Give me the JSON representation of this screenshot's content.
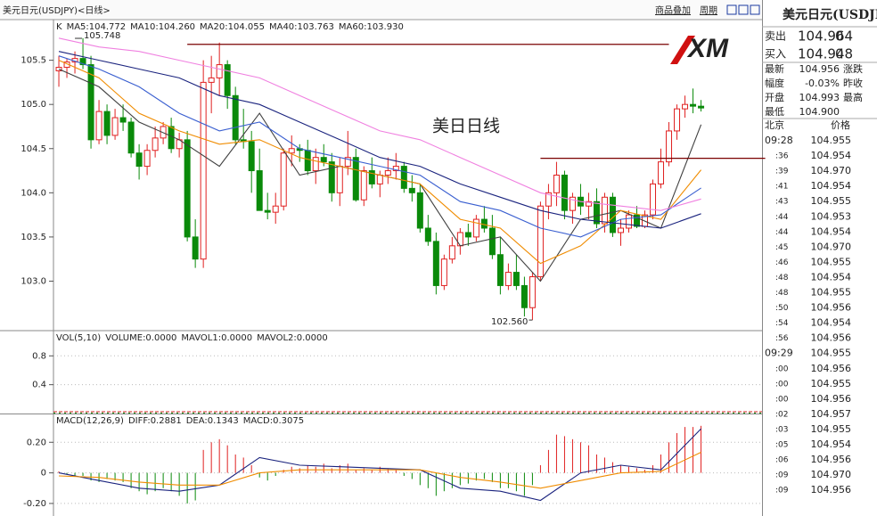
{
  "header": {
    "symbol": "美元日元(USDJPY)<日线>",
    "links": [
      "商品叠加",
      "周期"
    ],
    "logo": "XM",
    "title": "美日日线"
  },
  "chart_data": [
    {
      "type": "candlestick",
      "label": "K",
      "xlim": [
        -0.67,
        87.6
      ],
      "ylim": [
        102.44,
        105.96
      ],
      "yticks": [
        105.5,
        {
          "value": 105,
          "label": "105.0"
        },
        104.5,
        {
          "value": 104,
          "label": "104.0"
        },
        103.5,
        {
          "value": 103,
          "label": "103.0"
        }
      ],
      "grid": false,
      "up_color": "#e02020",
      "down_color": "#0a8a0a",
      "ohlc": [
        [
          105.38,
          105.55,
          105.2,
          105.42
        ],
        [
          105.42,
          105.52,
          105.3,
          105.48
        ],
        [
          105.48,
          105.6,
          105.35,
          105.52
        ],
        [
          105.52,
          105.75,
          105.4,
          105.45
        ],
        [
          105.45,
          105.55,
          104.5,
          104.6
        ],
        [
          104.6,
          105.05,
          104.55,
          104.92
        ],
        [
          104.92,
          105,
          104.55,
          104.65
        ],
        [
          104.65,
          104.95,
          104.6,
          104.85
        ],
        [
          104.85,
          105,
          104.7,
          104.8
        ],
        [
          104.8,
          104.85,
          104.4,
          104.45
        ],
        [
          104.45,
          104.55,
          104.15,
          104.3
        ],
        [
          104.3,
          104.55,
          104.2,
          104.48
        ],
        [
          104.48,
          104.75,
          104.4,
          104.62
        ],
        [
          104.62,
          104.8,
          104.55,
          104.75
        ],
        [
          104.75,
          104.85,
          104.45,
          104.5
        ],
        [
          104.5,
          104.68,
          104.4,
          104.6
        ],
        [
          104.6,
          104.7,
          103.45,
          103.5
        ],
        [
          103.5,
          103.7,
          103.15,
          103.25
        ],
        [
          103.25,
          105.5,
          103.15,
          105.25
        ],
        [
          105.25,
          105.55,
          104.9,
          105.3
        ],
        [
          105.3,
          105.7,
          105.1,
          105.45
        ],
        [
          105.45,
          105.5,
          104.95,
          105.1
        ],
        [
          105.1,
          105.2,
          104.55,
          104.6
        ],
        [
          104.6,
          104.95,
          104.5,
          104.58
        ],
        [
          104.58,
          104.7,
          104,
          104.25
        ],
        [
          104.25,
          104.5,
          103.8,
          103.8
        ],
        [
          103.8,
          104,
          103.7,
          103.78
        ],
        [
          103.78,
          104,
          103.65,
          103.85
        ],
        [
          103.85,
          104.5,
          103.8,
          104.45
        ],
        [
          104.45,
          104.65,
          104.3,
          104.5
        ],
        [
          104.5,
          104.55,
          104.35,
          104.48
        ],
        [
          104.48,
          104.6,
          104.2,
          104.25
        ],
        [
          104.25,
          104.5,
          104.1,
          104.4
        ],
        [
          104.4,
          104.55,
          104.3,
          104.35
        ],
        [
          104.35,
          104.45,
          103.9,
          104
        ],
        [
          104,
          104.4,
          103.85,
          104.3
        ],
        [
          104.3,
          104.7,
          104.2,
          104.4
        ],
        [
          104.4,
          104.5,
          103.9,
          103.92
        ],
        [
          103.92,
          104.3,
          103.85,
          104.25
        ],
        [
          104.25,
          104.4,
          104.05,
          104.1
        ],
        [
          104.1,
          104.25,
          103.95,
          104.2
        ],
        [
          104.2,
          104.4,
          104.1,
          104.25
        ],
        [
          104.25,
          104.45,
          104.15,
          104.3
        ],
        [
          104.3,
          104.35,
          104,
          104.05
        ],
        [
          104.05,
          104.2,
          103.9,
          104
        ],
        [
          104,
          104.1,
          103.55,
          103.6
        ],
        [
          103.6,
          103.75,
          103.4,
          103.45
        ],
        [
          103.45,
          103.55,
          102.85,
          102.95
        ],
        [
          102.95,
          103.3,
          102.9,
          103.25
        ],
        [
          103.25,
          103.5,
          103.2,
          103.4
        ],
        [
          103.4,
          103.6,
          103.3,
          103.55
        ],
        [
          103.55,
          103.65,
          103.4,
          103.5
        ],
        [
          103.5,
          103.75,
          103.45,
          103.7
        ],
        [
          103.7,
          103.85,
          103.55,
          103.6
        ],
        [
          103.6,
          103.75,
          103.25,
          103.3
        ],
        [
          103.3,
          103.5,
          102.85,
          102.95
        ],
        [
          102.95,
          103.2,
          102.9,
          103.1
        ],
        [
          103.1,
          103.3,
          102.9,
          102.95
        ],
        [
          102.95,
          103.05,
          102.6,
          102.7
        ],
        [
          102.7,
          103.1,
          102.56,
          103.05
        ],
        [
          103.05,
          103.9,
          103,
          103.85
        ],
        [
          103.85,
          104.1,
          103.7,
          104
        ],
        [
          104,
          104.35,
          103.85,
          104.2
        ],
        [
          104.2,
          104.25,
          103.7,
          103.8
        ],
        [
          103.8,
          104,
          103.65,
          103.95
        ],
        [
          103.95,
          104.1,
          103.75,
          103.85
        ],
        [
          103.85,
          104,
          103.7,
          103.9
        ],
        [
          103.9,
          104.05,
          103.6,
          103.65
        ],
        [
          103.65,
          104,
          103.55,
          103.95
        ],
        [
          103.95,
          104,
          103.5,
          103.55
        ],
        [
          103.55,
          103.7,
          103.4,
          103.6
        ],
        [
          103.6,
          103.8,
          103.55,
          103.75
        ],
        [
          103.75,
          103.85,
          103.6,
          103.62
        ],
        [
          103.62,
          103.8,
          103.6,
          103.75
        ],
        [
          103.75,
          104.15,
          103.7,
          104.1
        ],
        [
          104.1,
          104.5,
          104.05,
          104.35
        ],
        [
          104.35,
          104.8,
          104.3,
          104.7
        ],
        [
          104.7,
          105,
          104.6,
          104.95
        ],
        [
          104.95,
          105.1,
          104.85,
          105
        ],
        [
          105,
          105.18,
          104.9,
          104.98
        ],
        [
          104.98,
          105.05,
          104.92,
          104.96
        ]
      ],
      "x": [
        0,
        5,
        10,
        15,
        20,
        25,
        30,
        35,
        40,
        45,
        50,
        55,
        60,
        65,
        70,
        75,
        80
      ],
      "series": [
        {
          "name": "MA5:104.772",
          "color": "#404040",
          "values": [
            105.4,
            105.2,
            104.8,
            104.6,
            104.3,
            104.9,
            104.2,
            104.3,
            104.2,
            104.1,
            103.4,
            103.5,
            103.0,
            103.7,
            103.8,
            103.6,
            104.772
          ]
        },
        {
          "name": "MA10:104.260",
          "color": "#f08c00",
          "values": [
            105.5,
            105.3,
            104.9,
            104.7,
            104.55,
            104.6,
            104.4,
            104.3,
            104.2,
            104.1,
            103.7,
            103.6,
            103.2,
            103.4,
            103.8,
            103.7,
            104.26
          ]
        },
        {
          "name": "MA20:104.055",
          "color": "#3a5fd0",
          "values": [
            105.55,
            105.4,
            105.2,
            104.9,
            104.7,
            104.8,
            104.5,
            104.4,
            104.3,
            104.2,
            103.9,
            103.8,
            103.6,
            103.5,
            103.7,
            103.75,
            104.055
          ]
        },
        {
          "name": "MA40:103.763",
          "color": "#1a237e",
          "values": [
            105.6,
            105.5,
            105.4,
            105.3,
            105.1,
            105.0,
            104.8,
            104.6,
            104.4,
            104.3,
            104.1,
            103.95,
            103.8,
            103.7,
            103.65,
            103.6,
            103.763
          ]
        },
        {
          "name": "MA60:103.930",
          "color": "#f080e0",
          "values": [
            105.75,
            105.65,
            105.6,
            105.5,
            105.4,
            105.3,
            105.1,
            104.9,
            104.7,
            104.6,
            104.4,
            104.2,
            104.0,
            103.9,
            103.85,
            103.8,
            103.93
          ]
        }
      ],
      "hlines": [
        {
          "value": 105.68,
          "from": 16,
          "to": 76
        },
        {
          "value": 104.39,
          "from": 60,
          "to": 88
        }
      ],
      "annotations": [
        {
          "label": "105.748",
          "value": 105.748,
          "x": 2
        },
        {
          "label": "102.560",
          "value": 102.56,
          "x": 59
        }
      ]
    },
    {
      "type": "volume",
      "label": "VOL(5,10)",
      "legend": [
        {
          "text": "VOLUME:0.0000",
          "color": "#202020"
        },
        {
          "text": "MAVOL1:0.0000",
          "color": "#202020"
        },
        {
          "text": "MAVOL2:0.0000",
          "color": "#f08c00"
        }
      ],
      "xlim": [
        -0.67,
        87.6
      ],
      "ylim": [
        0,
        1.15
      ],
      "yticks": [
        0.8,
        0.4
      ],
      "grid": true
    },
    {
      "type": "macd",
      "label": "MACD(12,26,9)",
      "xlim": [
        -0.67,
        87.6
      ],
      "ylim": [
        -0.282,
        0.388
      ],
      "yticks": [
        {
          "value": 0.2,
          "label": "0.20"
        },
        0,
        {
          "value": -0.2,
          "label": "-0.20"
        }
      ],
      "grid": true,
      "histogram": {
        "name": "MACD:0.3075",
        "up_color": "#e02020",
        "down_color": "#0a8a0a",
        "values": [
          0.01,
          -0.01,
          -0.02,
          -0.02,
          -0.05,
          -0.06,
          -0.04,
          -0.05,
          -0.06,
          -0.1,
          -0.12,
          -0.14,
          -0.12,
          -0.1,
          -0.12,
          -0.15,
          -0.2,
          -0.18,
          0.15,
          0.2,
          0.22,
          0.18,
          0.12,
          0.1,
          0.05,
          -0.03,
          -0.05,
          -0.02,
          0.02,
          0.04,
          0.03,
          0.05,
          0.04,
          0.06,
          0.03,
          0.05,
          0.06,
          0.02,
          0.03,
          0.02,
          0.04,
          0.03,
          0.02,
          -0.02,
          -0.04,
          -0.08,
          -0.1,
          -0.15,
          -0.12,
          -0.1,
          -0.08,
          -0.07,
          -0.05,
          -0.04,
          -0.06,
          -0.1,
          -0.1,
          -0.12,
          -0.15,
          -0.08,
          0.05,
          0.15,
          0.25,
          0.24,
          0.22,
          0.2,
          0.18,
          0.12,
          0.1,
          0.07,
          0.05,
          0.04,
          0.03,
          0.02,
          0.05,
          0.12,
          0.2,
          0.26,
          0.3,
          0.3,
          0.3075
        ]
      },
      "x": [
        0,
        5,
        10,
        15,
        20,
        25,
        30,
        35,
        40,
        45,
        50,
        55,
        60,
        65,
        70,
        75,
        80
      ],
      "series": [
        {
          "name": "DIFF:0.2881",
          "color": "#1a237e",
          "values": [
            0,
            -0.05,
            -0.1,
            -0.12,
            -0.08,
            0.1,
            0.05,
            0.04,
            0.03,
            0.02,
            -0.1,
            -0.12,
            -0.18,
            0,
            0.05,
            0.02,
            0.2881
          ]
        },
        {
          "name": "DEA:0.1343",
          "color": "#f08c00",
          "values": [
            -0.02,
            -0.03,
            -0.06,
            -0.08,
            -0.08,
            0,
            0.02,
            0.02,
            0.02,
            0.02,
            -0.03,
            -0.06,
            -0.1,
            -0.05,
            0,
            0.01,
            0.1343
          ]
        }
      ]
    }
  ],
  "quote": {
    "title": "美元日元(USDJPY",
    "bid": [
      "卖出",
      "104.964",
      "0"
    ],
    "ask": [
      "买入",
      "104.948",
      "0"
    ],
    "rows": [
      [
        "最新",
        "104.956",
        "涨跌"
      ],
      [
        "幅度",
        "-0.03%",
        "昨收"
      ],
      [
        "开盘",
        "104.993",
        "最高"
      ],
      [
        "最低",
        "104.900"
      ]
    ],
    "tick_header": [
      "北京",
      "价格"
    ],
    "ticks": [
      [
        "09:28",
        "104.955"
      ],
      [
        ":36",
        "104.954"
      ],
      [
        ":39",
        "104.970"
      ],
      [
        ":41",
        "104.954"
      ],
      [
        ":43",
        "104.955"
      ],
      [
        ":44",
        "104.953"
      ],
      [
        ":44",
        "104.954"
      ],
      [
        ":45",
        "104.970"
      ],
      [
        ":46",
        "104.955"
      ],
      [
        ":48",
        "104.954"
      ],
      [
        ":48",
        "104.955"
      ],
      [
        ":50",
        "104.956"
      ],
      [
        ":54",
        "104.954"
      ],
      [
        ":56",
        "104.956"
      ],
      [
        "09:29",
        "104.955"
      ],
      [
        ":00",
        "104.956"
      ],
      [
        ":00",
        "104.955"
      ],
      [
        ":00",
        "104.956"
      ],
      [
        ":02",
        "104.957"
      ],
      [
        ":03",
        "104.955"
      ],
      [
        ":05",
        "104.954"
      ],
      [
        ":06",
        "104.956"
      ],
      [
        ":09",
        "104.970"
      ],
      [
        ":09",
        "104.956"
      ]
    ]
  }
}
